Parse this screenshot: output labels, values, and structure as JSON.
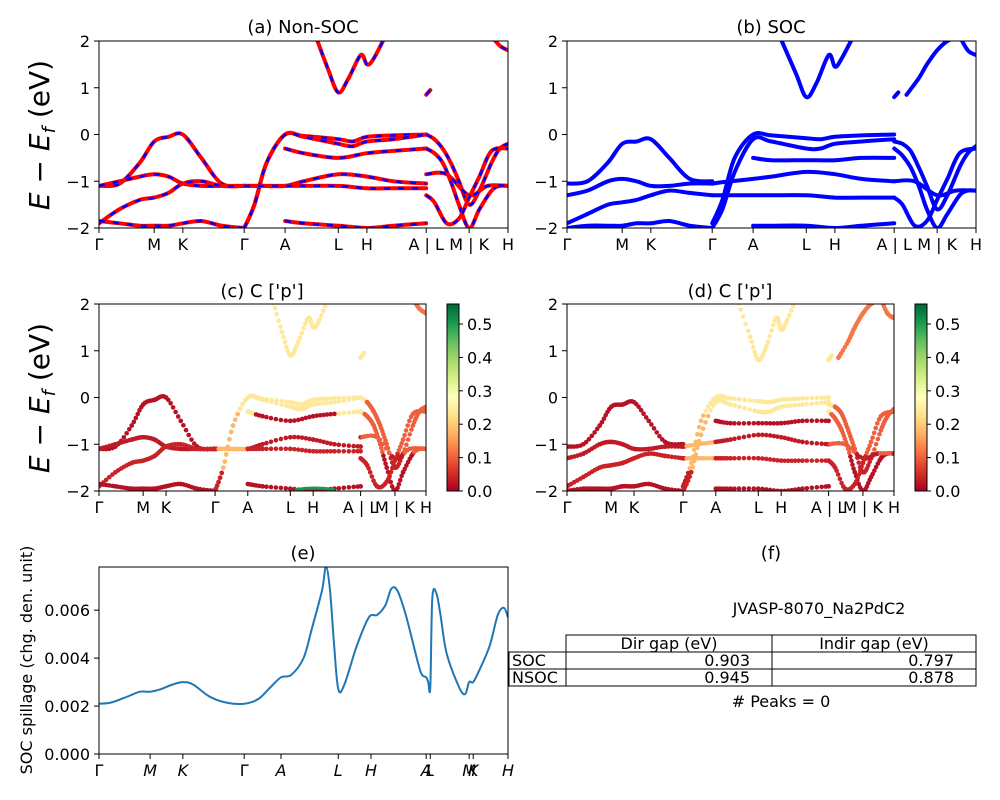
{
  "chart_data": [
    {
      "id": "a",
      "type": "line",
      "title": "(a) Non-SOC",
      "ylabel": "E − E_f (eV)",
      "ylim": [
        -2,
        2
      ],
      "yticks": [
        "−2",
        "−1",
        "0",
        "1",
        "2"
      ],
      "ytick_values": [
        -2,
        -1,
        0,
        1,
        2
      ],
      "xticks": [
        "Γ",
        "M",
        "K",
        "Γ",
        "A",
        "L",
        "H",
        "A | L",
        "M | K",
        "H"
      ],
      "xtick_positions": [
        0,
        0.135,
        0.205,
        0.355,
        0.455,
        0.585,
        0.655,
        0.8,
        0.905,
        1.0
      ],
      "series": [
        {
          "name": "non-SOC bands",
          "color": "#ff0000",
          "dash_color": "#0000ff",
          "style": "red with blue dashes"
        }
      ],
      "bands": [
        {
          "x": [
            0,
            0.05,
            0.1,
            0.135,
            0.17,
            0.205,
            0.25,
            0.3,
            0.355
          ],
          "y": [
            -1.1,
            -1.05,
            -0.6,
            -0.15,
            -0.05,
            0.0,
            -0.5,
            -1.05,
            -1.1
          ]
        },
        {
          "x": [
            0,
            0.05,
            0.1,
            0.135,
            0.17,
            0.205,
            0.25,
            0.3,
            0.355
          ],
          "y": [
            -1.1,
            -1.0,
            -0.9,
            -0.85,
            -0.9,
            -1.05,
            -1.1,
            -1.1,
            -1.1
          ]
        },
        {
          "x": [
            0,
            0.05,
            0.1,
            0.135,
            0.17,
            0.205,
            0.25,
            0.3,
            0.355
          ],
          "y": [
            -1.9,
            -1.6,
            -1.4,
            -1.35,
            -1.25,
            -1.05,
            -1.0,
            -1.1,
            -1.1
          ]
        },
        {
          "x": [
            0,
            0.05,
            0.1,
            0.135,
            0.17,
            0.205,
            0.25,
            0.3,
            0.355
          ],
          "y": [
            -1.85,
            -1.9,
            -1.95,
            -1.95,
            -1.95,
            -1.9,
            -1.85,
            -1.95,
            -2.0
          ]
        },
        {
          "x": [
            0.355,
            0.38,
            0.41,
            0.455,
            0.5,
            0.585,
            0.62,
            0.655,
            0.72,
            0.8
          ],
          "y": [
            -2.0,
            -1.5,
            -0.6,
            0.0,
            -0.03,
            -0.1,
            -0.15,
            -0.05,
            -0.02,
            0.0
          ]
        },
        {
          "x": [
            0.355,
            0.38,
            0.41,
            0.455,
            0.5,
            0.585,
            0.62,
            0.655,
            0.72,
            0.8
          ],
          "y": [
            -2.0,
            -1.5,
            -0.6,
            0.0,
            -0.05,
            -0.2,
            -0.25,
            -0.15,
            -0.1,
            0.0
          ]
        },
        {
          "x": [
            0.455,
            0.5,
            0.585,
            0.655,
            0.72,
            0.8
          ],
          "y": [
            -0.3,
            -0.4,
            -0.5,
            -0.4,
            -0.35,
            -0.3
          ]
        },
        {
          "x": [
            0.355,
            0.4,
            0.455,
            0.5,
            0.585,
            0.655,
            0.72,
            0.8
          ],
          "y": [
            -1.1,
            -1.1,
            -1.1,
            -1.0,
            -0.85,
            -0.9,
            -1.0,
            -1.05
          ]
        },
        {
          "x": [
            0.355,
            0.4,
            0.455,
            0.5,
            0.585,
            0.655,
            0.72,
            0.8
          ],
          "y": [
            -1.1,
            -1.1,
            -1.1,
            -1.1,
            -1.1,
            -1.15,
            -1.15,
            -1.15
          ]
        },
        {
          "x": [
            0.455,
            0.5,
            0.585,
            0.655,
            0.72,
            0.8
          ],
          "y": [
            -1.85,
            -1.9,
            -1.95,
            -2.0,
            -1.95,
            -1.9
          ]
        },
        {
          "x": [
            0.53,
            0.56,
            0.585,
            0.61,
            0.64,
            0.655,
            0.67,
            0.7
          ],
          "y": [
            2.1,
            1.4,
            0.9,
            1.2,
            1.7,
            1.5,
            1.6,
            2.1
          ]
        },
        {
          "x": [
            0.8,
            0.82,
            0.84,
            0.86,
            0.88,
            0.905,
            0.93,
            0.96,
            0.98,
            1.0
          ],
          "y": [
            0.0,
            -0.1,
            -0.3,
            -0.6,
            -1.0,
            -1.5,
            -1.2,
            -0.6,
            -0.3,
            -0.2
          ]
        },
        {
          "x": [
            0.8,
            0.82,
            0.84,
            0.86,
            0.88,
            0.905,
            0.93,
            0.96,
            0.98,
            1.0
          ],
          "y": [
            -0.3,
            -0.4,
            -0.6,
            -1.0,
            -1.5,
            -2.0,
            -1.6,
            -1.2,
            -1.1,
            -1.1
          ]
        },
        {
          "x": [
            0.8,
            0.85,
            0.905,
            0.95,
            1.0
          ],
          "y": [
            -0.85,
            -0.85,
            -1.3,
            -1.1,
            -1.1
          ]
        },
        {
          "x": [
            0.8,
            0.82,
            0.85,
            0.88,
            0.905,
            0.93,
            0.96,
            1.0
          ],
          "y": [
            -1.3,
            -1.45,
            -1.9,
            -1.8,
            -1.35,
            -0.9,
            -0.35,
            -0.3
          ]
        },
        {
          "x": [
            0.8,
            0.81
          ],
          "y": [
            0.85,
            0.95
          ]
        },
        {
          "x": [
            0.96,
            0.98,
            1.0
          ],
          "y": [
            2.1,
            1.9,
            1.8
          ]
        }
      ]
    },
    {
      "id": "b",
      "type": "line",
      "title": "(b) SOC",
      "ylim": [
        -2,
        2
      ],
      "yticks": [
        "−2",
        "−1",
        "0",
        "1",
        "2"
      ],
      "ytick_values": [
        -2,
        -1,
        0,
        1,
        2
      ],
      "xticks": [
        "Γ",
        "M",
        "K",
        "Γ",
        "A",
        "L",
        "H",
        "A | L",
        "M | K",
        "H"
      ],
      "xtick_positions": [
        0,
        0.135,
        0.205,
        0.355,
        0.455,
        0.585,
        0.655,
        0.8,
        0.905,
        1.0
      ],
      "series": [
        {
          "name": "SOC bands",
          "color": "#0000ff"
        }
      ],
      "bands": [
        {
          "x": [
            0,
            0.05,
            0.1,
            0.135,
            0.17,
            0.205,
            0.25,
            0.3,
            0.355
          ],
          "y": [
            -1.05,
            -1.0,
            -0.6,
            -0.2,
            -0.15,
            -0.1,
            -0.5,
            -0.95,
            -1.0
          ]
        },
        {
          "x": [
            0,
            0.05,
            0.1,
            0.135,
            0.17,
            0.205,
            0.25,
            0.3,
            0.355
          ],
          "y": [
            -1.3,
            -1.2,
            -1.0,
            -0.95,
            -1.0,
            -1.1,
            -1.1,
            -1.05,
            -1.05
          ]
        },
        {
          "x": [
            0,
            0.05,
            0.1,
            0.135,
            0.17,
            0.205,
            0.25,
            0.3,
            0.355
          ],
          "y": [
            -1.9,
            -1.7,
            -1.5,
            -1.45,
            -1.4,
            -1.3,
            -1.2,
            -1.25,
            -1.3
          ]
        },
        {
          "x": [
            0,
            0.05,
            0.1,
            0.135,
            0.17,
            0.205,
            0.25,
            0.3,
            0.355
          ],
          "y": [
            -2.0,
            -1.95,
            -1.95,
            -1.95,
            -1.9,
            -1.9,
            -1.85,
            -1.95,
            -2.0
          ]
        },
        {
          "x": [
            0.355,
            0.38,
            0.41,
            0.455,
            0.5,
            0.585,
            0.62,
            0.655,
            0.72,
            0.8
          ],
          "y": [
            -1.9,
            -1.4,
            -0.5,
            0.0,
            -0.02,
            -0.08,
            -0.1,
            -0.05,
            -0.02,
            0.0
          ]
        },
        {
          "x": [
            0.355,
            0.38,
            0.41,
            0.455,
            0.5,
            0.585,
            0.62,
            0.655,
            0.72,
            0.8
          ],
          "y": [
            -2.0,
            -1.6,
            -0.8,
            -0.1,
            -0.15,
            -0.3,
            -0.3,
            -0.2,
            -0.15,
            -0.1
          ]
        },
        {
          "x": [
            0.455,
            0.5,
            0.585,
            0.655,
            0.72,
            0.8
          ],
          "y": [
            -0.5,
            -0.55,
            -0.55,
            -0.55,
            -0.5,
            -0.5
          ]
        },
        {
          "x": [
            0.355,
            0.4,
            0.455,
            0.5,
            0.585,
            0.655,
            0.72,
            0.8
          ],
          "y": [
            -1.05,
            -1.0,
            -0.95,
            -0.9,
            -0.8,
            -0.85,
            -0.95,
            -1.0
          ]
        },
        {
          "x": [
            0.355,
            0.4,
            0.455,
            0.5,
            0.585,
            0.655,
            0.72,
            0.8
          ],
          "y": [
            -1.3,
            -1.3,
            -1.3,
            -1.3,
            -1.3,
            -1.35,
            -1.35,
            -1.35
          ]
        },
        {
          "x": [
            0.455,
            0.5,
            0.585,
            0.655,
            0.72,
            0.8
          ],
          "y": [
            -1.95,
            -1.95,
            -1.95,
            -2.0,
            -1.95,
            -1.9
          ]
        },
        {
          "x": [
            0.52,
            0.56,
            0.585,
            0.61,
            0.64,
            0.655,
            0.67,
            0.7
          ],
          "y": [
            2.1,
            1.3,
            0.8,
            1.1,
            1.7,
            1.45,
            1.6,
            2.1
          ]
        },
        {
          "x": [
            0.8,
            0.82,
            0.84,
            0.86,
            0.88,
            0.905,
            0.93,
            0.96,
            0.98,
            1.0
          ],
          "y": [
            -0.15,
            -0.2,
            -0.35,
            -0.7,
            -1.1,
            -1.6,
            -1.3,
            -0.7,
            -0.4,
            -0.25
          ]
        },
        {
          "x": [
            0.8,
            0.82,
            0.84,
            0.86,
            0.88,
            0.905,
            0.93,
            0.96,
            0.98,
            1.0
          ],
          "y": [
            -0.3,
            -0.45,
            -0.7,
            -1.1,
            -1.6,
            -2.0,
            -1.7,
            -1.3,
            -1.2,
            -1.2
          ]
        },
        {
          "x": [
            0.8,
            0.85,
            0.905,
            0.95,
            1.0
          ],
          "y": [
            -1.0,
            -1.0,
            -1.3,
            -1.2,
            -1.2
          ]
        },
        {
          "x": [
            0.8,
            0.82,
            0.85,
            0.88,
            0.905,
            0.93,
            0.96,
            1.0
          ],
          "y": [
            -1.35,
            -1.5,
            -1.95,
            -1.85,
            -1.4,
            -0.95,
            -0.4,
            -0.3
          ]
        },
        {
          "x": [
            0.8,
            0.81
          ],
          "y": [
            0.8,
            0.9
          ]
        },
        {
          "x": [
            0.83,
            0.86,
            0.88,
            0.905,
            0.93,
            0.96,
            1.0
          ],
          "y": [
            0.85,
            1.2,
            1.5,
            1.8,
            2.0,
            2.1,
            2.2
          ]
        },
        {
          "x": [
            0.96,
            0.98,
            1.0
          ],
          "y": [
            2.1,
            1.8,
            1.7
          ]
        }
      ]
    },
    {
      "id": "c",
      "type": "scatter",
      "title": "(c)  C ['p']",
      "ylabel": "E − E_f (eV)",
      "ylim": [
        -2,
        2
      ],
      "yticks": [
        "−2",
        "−1",
        "0",
        "1",
        "2"
      ],
      "ytick_values": [
        -2,
        -1,
        0,
        1,
        2
      ],
      "xticks": [
        "Γ",
        "M",
        "K",
        "Γ",
        "A",
        "L",
        "H",
        "A | L",
        "M | K",
        "H"
      ],
      "xtick_positions": [
        0,
        0.135,
        0.205,
        0.355,
        0.455,
        0.585,
        0.655,
        0.8,
        0.905,
        1.0
      ],
      "colorbar": {
        "cmap": "RdYlGn",
        "ticks": [
          "0.0",
          "0.1",
          "0.2",
          "0.3",
          "0.4",
          "0.5"
        ],
        "tick_values": [
          0,
          0.1,
          0.2,
          0.3,
          0.4,
          0.5
        ],
        "range": [
          0,
          0.56
        ]
      }
    },
    {
      "id": "d",
      "type": "scatter",
      "title": "(d) C ['p']",
      "ylim": [
        -2,
        2
      ],
      "yticks": [
        "−2",
        "−1",
        "0",
        "1",
        "2"
      ],
      "ytick_values": [
        -2,
        -1,
        0,
        1,
        2
      ],
      "xticks": [
        "Γ",
        "M",
        "K",
        "Γ",
        "A",
        "L",
        "H",
        "A | L",
        "M | K",
        "H"
      ],
      "xtick_positions": [
        0,
        0.135,
        0.205,
        0.355,
        0.455,
        0.585,
        0.655,
        0.8,
        0.905,
        1.0
      ],
      "colorbar": {
        "cmap": "RdYlGn",
        "ticks": [
          "0.0",
          "0.1",
          "0.2",
          "0.3",
          "0.4",
          "0.5"
        ],
        "tick_values": [
          0,
          0.1,
          0.2,
          0.3,
          0.4,
          0.5
        ],
        "range": [
          0,
          0.56
        ]
      }
    },
    {
      "id": "e",
      "type": "line",
      "title": "(e)",
      "ylabel": "SOC spillage (chg. den. unit)",
      "ylim": [
        0,
        0.0078
      ],
      "yticks": [
        "0.000",
        "0.002",
        "0.004",
        "0.006"
      ],
      "ytick_values": [
        0,
        0.002,
        0.004,
        0.006
      ],
      "xticks": [
        "Γ",
        "M",
        "K",
        "Γ",
        "A",
        "L",
        "H",
        "A",
        "L",
        "M",
        "K",
        "H"
      ],
      "xtick_positions": [
        0,
        0.125,
        0.205,
        0.355,
        0.445,
        0.585,
        0.665,
        0.8,
        0.81,
        0.905,
        0.915,
        1.0
      ],
      "series": [
        {
          "name": "spillage",
          "color": "#1f77b4",
          "x": [
            0,
            0.03,
            0.07,
            0.1,
            0.125,
            0.15,
            0.18,
            0.205,
            0.23,
            0.27,
            0.31,
            0.355,
            0.39,
            0.42,
            0.445,
            0.47,
            0.5,
            0.52,
            0.545,
            0.555,
            0.565,
            0.575,
            0.585,
            0.6,
            0.63,
            0.66,
            0.68,
            0.7,
            0.715,
            0.73,
            0.75,
            0.78,
            0.79,
            0.8,
            0.805,
            0.81,
            0.815,
            0.825,
            0.835,
            0.85,
            0.88,
            0.895,
            0.905,
            0.915,
            0.93,
            0.955,
            0.975,
            0.99,
            1.0
          ],
          "y": [
            0.0021,
            0.00215,
            0.0024,
            0.0026,
            0.0026,
            0.0027,
            0.0029,
            0.003,
            0.0029,
            0.0024,
            0.00215,
            0.0021,
            0.0023,
            0.0028,
            0.0032,
            0.0033,
            0.004,
            0.0052,
            0.0068,
            0.0078,
            0.0068,
            0.0045,
            0.0027,
            0.0029,
            0.0045,
            0.0057,
            0.0058,
            0.0062,
            0.0069,
            0.0068,
            0.0058,
            0.0038,
            0.0033,
            0.0032,
            0.003,
            0.0028,
            0.0065,
            0.0067,
            0.0058,
            0.0042,
            0.0028,
            0.0025,
            0.003,
            0.003,
            0.0035,
            0.0045,
            0.0058,
            0.0061,
            0.0057
          ]
        }
      ]
    },
    {
      "id": "f",
      "type": "table",
      "title": "(f)",
      "subtitle": "JVASP-8070_Na2PdC2",
      "columns": [
        "",
        "Dir gap (eV)",
        "Indir gap (eV)"
      ],
      "rows": [
        [
          "SOC",
          "0.903",
          "0.797"
        ],
        [
          "NSOC",
          "0.945",
          "0.878"
        ]
      ],
      "footer": "# Peaks = 0"
    }
  ]
}
